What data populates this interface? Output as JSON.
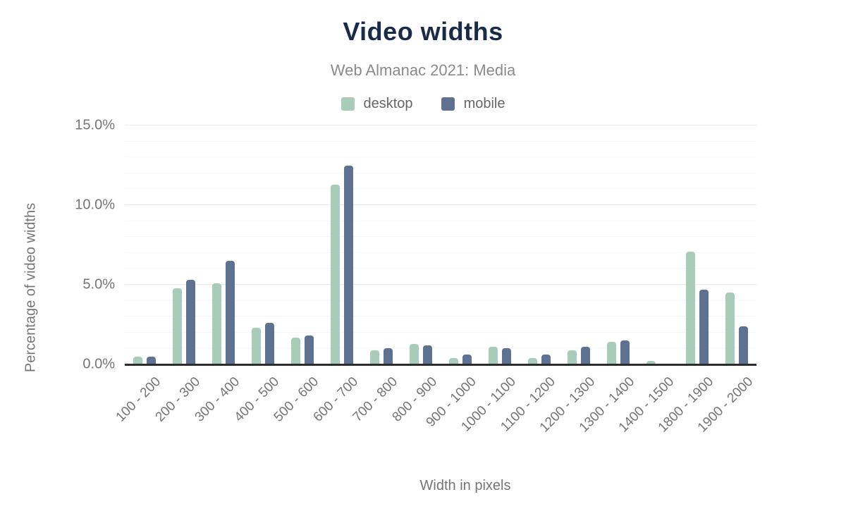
{
  "chart_data": {
    "type": "bar",
    "title": "Video widths",
    "subtitle": "Web Almanac 2021: Media",
    "xlabel": "Width in pixels",
    "ylabel": "Percentage of video widths",
    "categories": [
      "100 - 200",
      "200 - 300",
      "300 - 400",
      "400 - 500",
      "500 - 600",
      "600 - 700",
      "700 - 800",
      "800 - 900",
      "900 - 1000",
      "1000 - 1100",
      "1100 - 1200",
      "1200 - 1300",
      "1300 - 1400",
      "1400 - 1500",
      "1800 - 1900",
      "1900 - 2000"
    ],
    "series": [
      {
        "name": "desktop",
        "color": "#a9ccb8",
        "values": [
          0.5,
          4.8,
          5.1,
          2.3,
          1.7,
          11.3,
          0.9,
          1.3,
          0.4,
          1.1,
          0.4,
          0.9,
          1.4,
          0.2,
          7.1,
          4.5
        ]
      },
      {
        "name": "mobile",
        "color": "#5f7190",
        "values": [
          0.5,
          5.3,
          6.5,
          2.6,
          1.8,
          12.5,
          1.0,
          1.2,
          0.6,
          1.0,
          0.6,
          1.1,
          1.5,
          0.0,
          4.7,
          2.4
        ]
      }
    ],
    "ylim": [
      0,
      15
    ],
    "yticks": [
      {
        "value": 0,
        "label": "0.0%"
      },
      {
        "value": 5,
        "label": "5.0%"
      },
      {
        "value": 10,
        "label": "10.0%"
      },
      {
        "value": 15,
        "label": "15.0%"
      }
    ],
    "grid": {
      "minor_interval": 1,
      "major_interval": 5,
      "orientation": "horizontal"
    },
    "legend_position": "top",
    "colors": {
      "title": "#1a2b49",
      "text": "#757575",
      "axis_line": "#2d2d2d"
    }
  }
}
